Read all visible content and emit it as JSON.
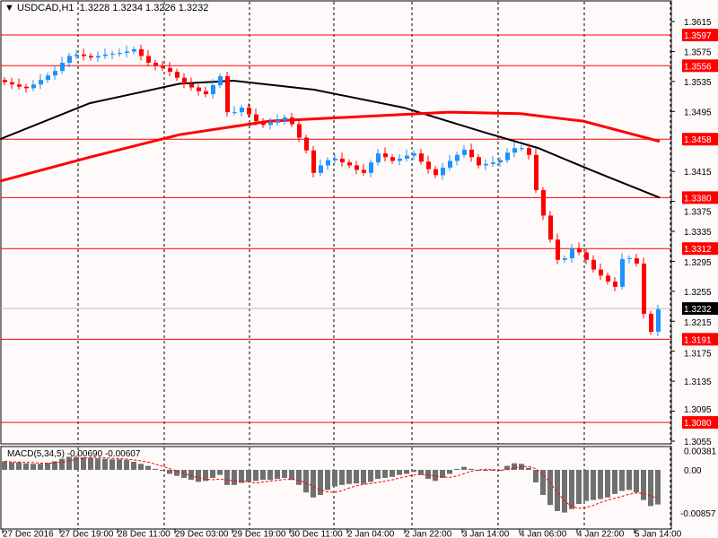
{
  "header": {
    "symbol": "USDCAD,H1",
    "ohlc": "1.3228 1.3234 1.3226 1.3232",
    "menu_icon": "triangle-down-icon"
  },
  "colors": {
    "background": "#fffafa",
    "bull": "#1e90ff",
    "bear": "#ff0000",
    "level_line": "#ff0000",
    "ma_slow": "#ff0000",
    "ma_fast": "#000000",
    "histogram": "#707070",
    "signal": "#ff0000",
    "current_price": "#000000"
  },
  "macd": {
    "label": "MACD(5,34,5)",
    "value1": "-0.00690",
    "value2": "-0.00607",
    "scale_top": "0.00381",
    "scale_zero": "0.00",
    "scale_bottom": "-0.00857"
  },
  "chart_data": {
    "type": "candlestick",
    "symbol": "USDCAD",
    "timeframe": "H1",
    "ylim": [
      1.3045,
      1.3644
    ],
    "y_ticks": [
      "1.3615",
      "1.3575",
      "1.3535",
      "1.3495",
      "1.3415",
      "1.3375",
      "1.3335",
      "1.3295",
      "1.3255",
      "1.3215",
      "1.3175",
      "1.3135",
      "1.3095",
      "1.3055"
    ],
    "x_ticks": [
      "27 Dec 2016",
      "27 Dec 19:00",
      "28 Dec 11:00",
      "29 Dec 03:00",
      "29 Dec 19:00",
      "30 Dec 11:00",
      "2 Jan 04:00",
      "2 Jan 22:00",
      "3 Jan 14:00",
      "4 Jan 06:00",
      "4 Jan 22:00",
      "5 Jan 14:00"
    ],
    "levels": [
      "1.3597",
      "1.3556",
      "1.3458",
      "1.3380",
      "1.3312",
      "1.3191",
      "1.3080"
    ],
    "current_price": "1.3232",
    "closes": [
      1.3534,
      1.3531,
      1.3528,
      1.3526,
      1.3531,
      1.3537,
      1.3543,
      1.3549,
      1.356,
      1.3569,
      1.3571,
      1.3569,
      1.3567,
      1.3569,
      1.3571,
      1.3572,
      1.3573,
      1.3575,
      1.3578,
      1.3569,
      1.356,
      1.3556,
      1.3553,
      1.3548,
      1.354,
      1.3532,
      1.3527,
      1.3522,
      1.3518,
      1.353,
      1.3542,
      1.3494,
      1.3494,
      1.35,
      1.3491,
      1.3482,
      1.3477,
      1.348,
      1.3483,
      1.3487,
      1.3478,
      1.346,
      1.3443,
      1.3413,
      1.3423,
      1.343,
      1.3432,
      1.3427,
      1.3423,
      1.3417,
      1.3413,
      1.3427,
      1.3439,
      1.3434,
      1.3429,
      1.3432,
      1.3436,
      1.3439,
      1.3428,
      1.3418,
      1.341,
      1.342,
      1.3429,
      1.3437,
      1.3444,
      1.3434,
      1.3423,
      1.3425,
      1.3427,
      1.343,
      1.344,
      1.3446,
      1.3446,
      1.3437,
      1.339,
      1.3356,
      1.3324,
      1.3297,
      1.3299,
      1.3312,
      1.3307,
      1.3297,
      1.3284,
      1.3276,
      1.3268,
      1.3261,
      1.3298,
      1.3299,
      1.3292,
      1.3225,
      1.3201,
      1.3231
    ],
    "ma_fast": [
      1.3458,
      1.3506,
      1.3532,
      1.3536,
      1.3524,
      1.35,
      1.3467,
      1.3446,
      1.3416,
      1.338
    ],
    "ma_slow": [
      1.3402,
      1.3434,
      1.3464,
      1.3482,
      1.3488,
      1.3494,
      1.3492,
      1.3482,
      1.3455
    ],
    "macd_histogram": [
      0.0017,
      0.0015,
      0.0015,
      0.0013,
      0.0012,
      0.0012,
      0.0014,
      0.0017,
      0.0022,
      0.0026,
      0.0026,
      0.0025,
      0.0024,
      0.0023,
      0.0022,
      0.0021,
      0.0021,
      0.002,
      0.0016,
      0.0012,
      0.0008,
      0.0002,
      -0.0002,
      -0.0008,
      -0.0012,
      -0.0016,
      -0.002,
      -0.0024,
      -0.0022,
      -0.0016,
      -0.001,
      -0.003,
      -0.003,
      -0.0026,
      -0.0024,
      -0.0022,
      -0.002,
      -0.002,
      -0.0018,
      -0.0016,
      -0.002,
      -0.003,
      -0.0045,
      -0.0055,
      -0.005,
      -0.004,
      -0.0033,
      -0.003,
      -0.0028,
      -0.0027,
      -0.0028,
      -0.0024,
      -0.0018,
      -0.0016,
      -0.0014,
      -0.001,
      -0.0008,
      -0.0004,
      -0.001,
      -0.0018,
      -0.0022,
      -0.0016,
      -0.0008,
      0.0002,
      0.0006,
      0.0002,
      -0.0002,
      -0.0002,
      0.0,
      -0.0002,
      0.0008,
      0.0013,
      0.0012,
      0.0004,
      -0.0025,
      -0.005,
      -0.007,
      -0.0082,
      -0.0085,
      -0.0078,
      -0.0068,
      -0.0062,
      -0.006,
      -0.0058,
      -0.0055,
      -0.0048,
      -0.0042,
      -0.004,
      -0.0045,
      -0.006,
      -0.0072,
      -0.0069
    ],
    "macd_ylim": [
      -0.00857,
      0.00381
    ]
  }
}
